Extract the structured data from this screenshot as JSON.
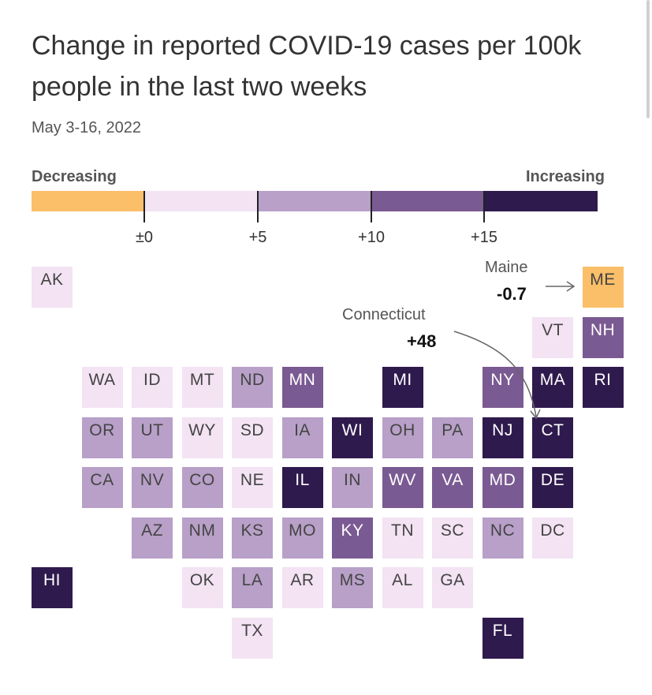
{
  "title": "Change in reported COVID-19 cases per 100k people in the last two weeks",
  "subtitle": "May 3-16, 2022",
  "legend": {
    "left_label": "Decreasing",
    "right_label": "Increasing",
    "ticks": [
      "±0",
      "+5",
      "+10",
      "+15"
    ],
    "bins": [
      {
        "name": "decreasing",
        "color": "#fbbf69"
      },
      {
        "name": "0-5",
        "color": "#f3e3f3"
      },
      {
        "name": "5-10",
        "color": "#b8a0c8"
      },
      {
        "name": "10-15",
        "color": "#7a5a92"
      },
      {
        "name": "15+",
        "color": "#2f1a4e"
      }
    ]
  },
  "annotations": {
    "maine": {
      "name": "Maine",
      "value": "-0.7"
    },
    "connecticut": {
      "name": "Connecticut",
      "value": "+48"
    }
  },
  "chart_data": {
    "type": "tile-grid-map",
    "title": "Change in reported COVID-19 cases per 100k people in the last two weeks",
    "subtitle": "May 3-16, 2022",
    "bin_labels": [
      "decreasing",
      "0-5",
      "5-10",
      "10-15",
      "15+"
    ],
    "states": [
      {
        "abbr": "AK",
        "bin": "0-5"
      },
      {
        "abbr": "ME",
        "bin": "decreasing",
        "value": -0.7
      },
      {
        "abbr": "VT",
        "bin": "0-5"
      },
      {
        "abbr": "NH",
        "bin": "10-15"
      },
      {
        "abbr": "WA",
        "bin": "0-5"
      },
      {
        "abbr": "ID",
        "bin": "0-5"
      },
      {
        "abbr": "MT",
        "bin": "0-5"
      },
      {
        "abbr": "ND",
        "bin": "5-10"
      },
      {
        "abbr": "MN",
        "bin": "10-15"
      },
      {
        "abbr": "MI",
        "bin": "15+"
      },
      {
        "abbr": "NY",
        "bin": "10-15"
      },
      {
        "abbr": "MA",
        "bin": "15+"
      },
      {
        "abbr": "RI",
        "bin": "15+"
      },
      {
        "abbr": "OR",
        "bin": "5-10"
      },
      {
        "abbr": "UT",
        "bin": "5-10"
      },
      {
        "abbr": "WY",
        "bin": "0-5"
      },
      {
        "abbr": "SD",
        "bin": "0-5"
      },
      {
        "abbr": "IA",
        "bin": "5-10"
      },
      {
        "abbr": "WI",
        "bin": "15+"
      },
      {
        "abbr": "OH",
        "bin": "5-10"
      },
      {
        "abbr": "PA",
        "bin": "5-10"
      },
      {
        "abbr": "NJ",
        "bin": "15+"
      },
      {
        "abbr": "CT",
        "bin": "15+",
        "value": 48
      },
      {
        "abbr": "CA",
        "bin": "5-10"
      },
      {
        "abbr": "NV",
        "bin": "5-10"
      },
      {
        "abbr": "CO",
        "bin": "5-10"
      },
      {
        "abbr": "NE",
        "bin": "0-5"
      },
      {
        "abbr": "IL",
        "bin": "15+"
      },
      {
        "abbr": "IN",
        "bin": "5-10"
      },
      {
        "abbr": "WV",
        "bin": "10-15"
      },
      {
        "abbr": "VA",
        "bin": "10-15"
      },
      {
        "abbr": "MD",
        "bin": "10-15"
      },
      {
        "abbr": "DE",
        "bin": "15+"
      },
      {
        "abbr": "AZ",
        "bin": "5-10"
      },
      {
        "abbr": "NM",
        "bin": "5-10"
      },
      {
        "abbr": "KS",
        "bin": "5-10"
      },
      {
        "abbr": "MO",
        "bin": "5-10"
      },
      {
        "abbr": "KY",
        "bin": "10-15"
      },
      {
        "abbr": "TN",
        "bin": "0-5"
      },
      {
        "abbr": "SC",
        "bin": "0-5"
      },
      {
        "abbr": "NC",
        "bin": "5-10"
      },
      {
        "abbr": "DC",
        "bin": "0-5"
      },
      {
        "abbr": "HI",
        "bin": "15+"
      },
      {
        "abbr": "OK",
        "bin": "0-5"
      },
      {
        "abbr": "LA",
        "bin": "5-10"
      },
      {
        "abbr": "AR",
        "bin": "0-5"
      },
      {
        "abbr": "MS",
        "bin": "5-10"
      },
      {
        "abbr": "AL",
        "bin": "0-5"
      },
      {
        "abbr": "GA",
        "bin": "0-5"
      },
      {
        "abbr": "TX",
        "bin": "0-5"
      },
      {
        "abbr": "FL",
        "bin": "15+"
      }
    ]
  }
}
